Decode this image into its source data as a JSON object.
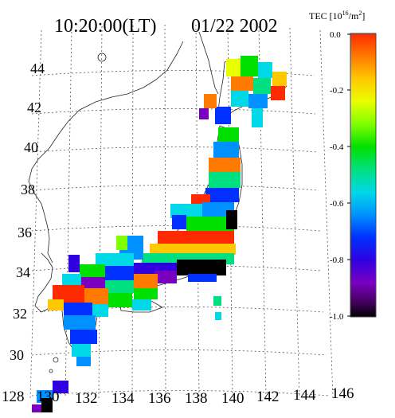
{
  "title": {
    "time": "10:20:00(LT)",
    "date": "01/22 2002"
  },
  "colorbar": {
    "title_prefix": "TEC [10",
    "title_exponent": "16",
    "title_suffix": "/m",
    "title_exponent2": "2",
    "title_close": "]",
    "ticks": [
      "0.0",
      "-0.2",
      "-0.4",
      "-0.6",
      "-0.8",
      "-1.0"
    ],
    "range": [
      -1.0,
      0.0
    ]
  },
  "axes": {
    "latitude_labels": [
      "44",
      "42",
      "40",
      "38",
      "36",
      "34",
      "32",
      "30"
    ],
    "longitude_labels": [
      "128",
      "130",
      "132",
      "134",
      "136",
      "138",
      "140",
      "142",
      "144",
      "146"
    ]
  }
}
